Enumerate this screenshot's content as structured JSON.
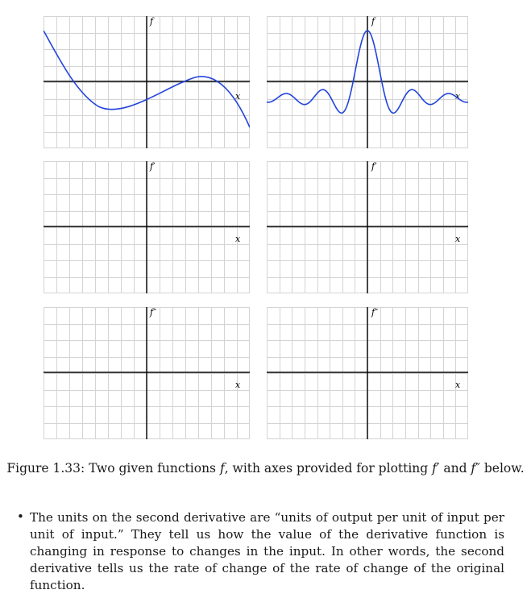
{
  "figure": {
    "caption_prefix": "Figure 1.33: Two given functions ",
    "caption_f": "f",
    "caption_mid": ", with axes provided for plotting ",
    "caption_fp": "f′",
    "caption_and": " and ",
    "caption_fpp": "f″",
    "caption_suffix": " below."
  },
  "panels": [
    {
      "id": "left-f",
      "ylabel": "f",
      "xlabel": "x",
      "curve": "cubic"
    },
    {
      "id": "right-f",
      "ylabel": "f",
      "xlabel": "x",
      "curve": "sinc"
    },
    {
      "id": "left-fp",
      "ylabel": "f′",
      "xlabel": "x",
      "curve": "none"
    },
    {
      "id": "right-fp",
      "ylabel": "f′",
      "xlabel": "x",
      "curve": "none"
    },
    {
      "id": "left-fpp",
      "ylabel": "f″",
      "xlabel": "x",
      "curve": "none"
    },
    {
      "id": "right-fpp",
      "ylabel": "f″",
      "xlabel": "x",
      "curve": "none"
    }
  ],
  "colors": {
    "grid": "#d4d4d4",
    "axis": "#000000",
    "curve": "#2244dd"
  },
  "bullet": {
    "text": "The units on the second derivative are “units of output per unit of input per unit of input.” They tell us how the value of the derivative function is changing in response to changes in the input. In other words, the second derivative tells us the rate of change of the rate of change of the original function."
  }
}
